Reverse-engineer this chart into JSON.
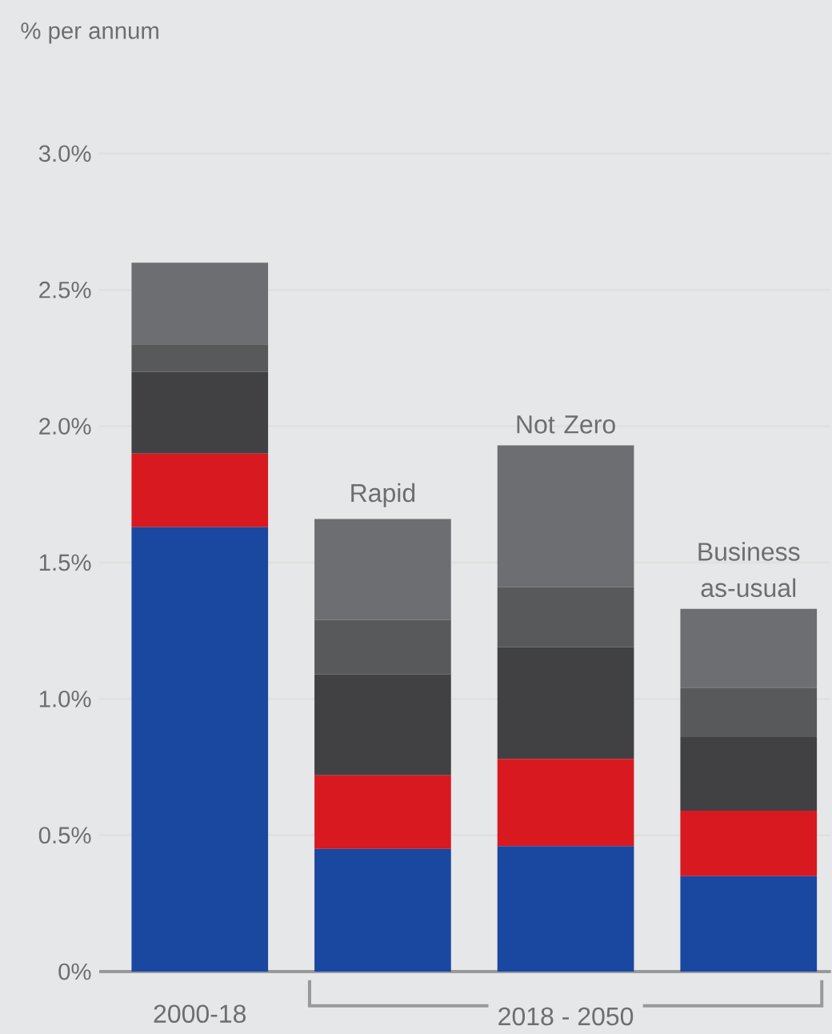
{
  "chart_data": {
    "type": "bar",
    "stacked": true,
    "ylabel": "% per annum",
    "categories": [
      "2000-18",
      "Rapid",
      "Not Zero",
      "Business as-usual"
    ],
    "series": [
      {
        "color": "#1a47a0",
        "values": [
          1.63,
          0.45,
          0.46,
          0.35
        ]
      },
      {
        "color": "#d81920",
        "values": [
          0.27,
          0.27,
          0.32,
          0.24
        ]
      },
      {
        "color": "#414143",
        "values": [
          0.3,
          0.37,
          0.41,
          0.27
        ]
      },
      {
        "color": "#58595b",
        "values": [
          0.1,
          0.2,
          0.22,
          0.18
        ]
      },
      {
        "color": "#6d6e71",
        "values": [
          0.3,
          0.37,
          0.52,
          0.29
        ]
      }
    ],
    "ylim": [
      0,
      3.0
    ],
    "yticks": [
      {
        "value": 0,
        "label": "0%"
      },
      {
        "value": 0.5,
        "label": "0.5%"
      },
      {
        "value": 1.0,
        "label": "1.0%"
      },
      {
        "value": 1.5,
        "label": "1.5%"
      },
      {
        "value": 2.0,
        "label": "2.0%"
      },
      {
        "value": 2.5,
        "label": "2.5%"
      },
      {
        "value": 3.0,
        "label": "3.0%"
      }
    ],
    "grid": "y",
    "annotations": [
      "2018 - 2050"
    ]
  }
}
